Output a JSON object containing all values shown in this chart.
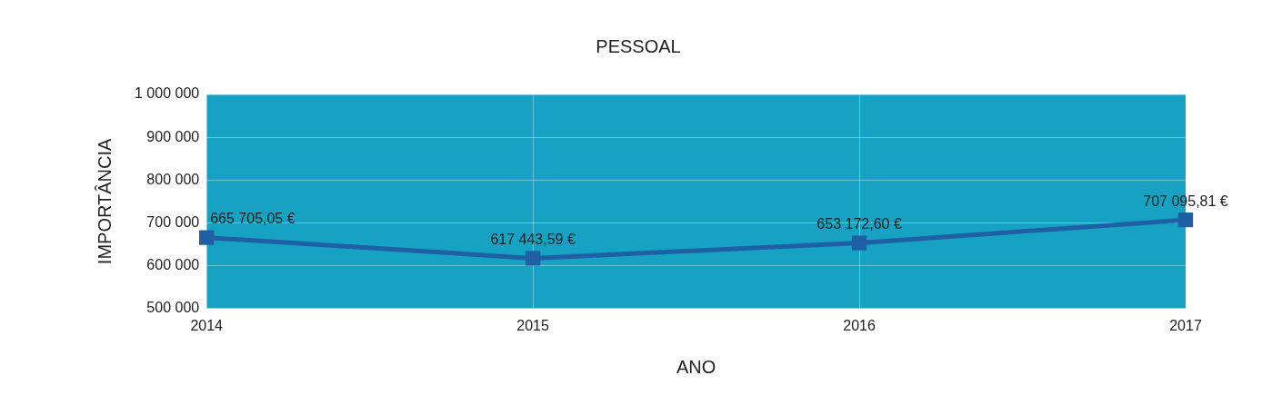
{
  "chart_data": {
    "type": "line",
    "title": "PESSOAL",
    "xlabel": "ANO",
    "ylabel": "IMPORTÂNCIA",
    "categories": [
      "2014",
      "2015",
      "2016",
      "2017"
    ],
    "series": [
      {
        "color": "#1f5fa6",
        "values": [
          665705.05,
          617443.59,
          653172.6,
          707095.81
        ],
        "value_labels": [
          "665 705,05 €",
          "617 443,59 €",
          "653 172,60 €",
          "707 095,81 €"
        ]
      }
    ],
    "ylim": [
      500000,
      1000000
    ],
    "yticks": [
      {
        "value": 500000,
        "label": "500 000"
      },
      {
        "value": 600000,
        "label": "600 000"
      },
      {
        "value": 700000,
        "label": "700 000"
      },
      {
        "value": 800000,
        "label": "800 000"
      },
      {
        "value": 900000,
        "label": "900 000"
      },
      {
        "value": 1000000,
        "label": "1 000 000"
      }
    ],
    "grid": true,
    "marker": "square",
    "line_style": "solid",
    "legend": false
  }
}
